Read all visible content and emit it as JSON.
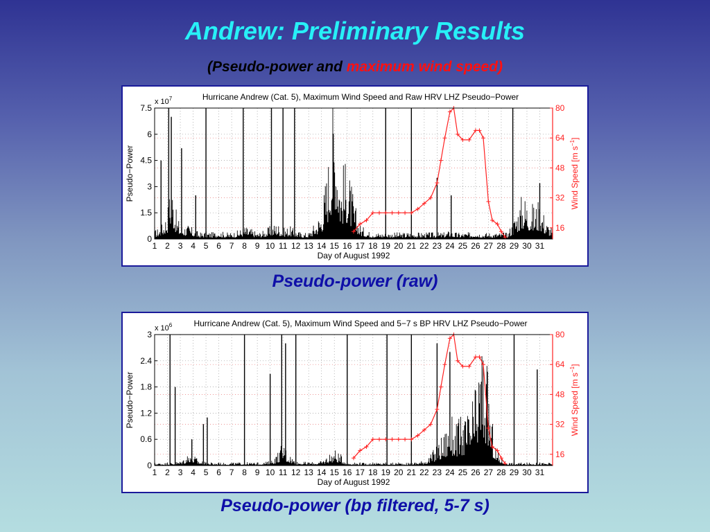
{
  "slide": {
    "title": "Andrew: Preliminary Results",
    "subtitle_part1": "(Pseudo-power and ",
    "subtitle_part2": "maximum wind speed)",
    "caption1": "Pseudo-power (raw)",
    "caption2": "Pseudo-power (bp filtered, 5-7 s)"
  },
  "colors": {
    "title": "#27f0f7",
    "caption": "#0f0fa8",
    "wind": "#ff2020",
    "power": "#000000"
  },
  "chart_data": [
    {
      "type": "area",
      "title": "Hurricane Andrew (Cat. 5), Maximum Wind Speed and Raw HRV LHZ Pseudo−Power",
      "xlabel": "Day of August 1992",
      "ylabel": "Pseudo−Power",
      "y_multiplier": "x 10",
      "y_exponent": "7",
      "y2label": "Wind Speed [m s",
      "y2label_exp": "−1",
      "y2label_close": "]",
      "xlim": [
        1,
        32
      ],
      "ylim": [
        0,
        7.5
      ],
      "y2lim": [
        10,
        80
      ],
      "xticks": [
        1,
        2,
        3,
        4,
        5,
        6,
        7,
        8,
        9,
        10,
        11,
        12,
        13,
        14,
        15,
        16,
        17,
        18,
        19,
        20,
        21,
        22,
        23,
        24,
        25,
        26,
        27,
        28,
        29,
        30,
        31
      ],
      "yticks": [
        0,
        1.5,
        3,
        4.5,
        6,
        7.5
      ],
      "ytick_labels": [
        "0",
        "1.5",
        "3",
        "4.5",
        "6",
        "7.5"
      ],
      "y2ticks": [
        16,
        32,
        48,
        64,
        80
      ],
      "grid": true,
      "series": [
        {
          "kind": "pseudo_power_envelope",
          "x": [
            1,
            1.5,
            2,
            2.3,
            2.5,
            2.7,
            3,
            3.5,
            4,
            4.5,
            5,
            5.5,
            6,
            6.5,
            7,
            7.5,
            8,
            8.5,
            9,
            9.5,
            10,
            10.5,
            11,
            11.5,
            12,
            12.5,
            13,
            13.5,
            14,
            14.5,
            14.8,
            15,
            15.2,
            15.5,
            15.7,
            16,
            16.3,
            16.6,
            17,
            17.5,
            18,
            18.5,
            19,
            19.5,
            20,
            20.5,
            21,
            21.5,
            22,
            22.5,
            23,
            23.5,
            24,
            24.5,
            25,
            25.5,
            26,
            26.5,
            27,
            27.5,
            28,
            28.5,
            29,
            29.3,
            29.7,
            30,
            30.5,
            31,
            31.5,
            32
          ],
          "values": [
            0.4,
            0.6,
            1.4,
            3.2,
            2.2,
            1.2,
            0.7,
            0.7,
            0.5,
            0.3,
            0.35,
            0.3,
            0.4,
            0.3,
            0.3,
            0.4,
            0.6,
            0.5,
            0.3,
            0.4,
            0.6,
            0.8,
            0.5,
            0.6,
            0.4,
            0.3,
            0.3,
            0.8,
            1.4,
            3.8,
            6.0,
            7.2,
            6.0,
            3.0,
            3.5,
            3.6,
            2.6,
            1.6,
            0.7,
            0.4,
            0.3,
            0.3,
            0.3,
            0.3,
            0.3,
            0.3,
            0.35,
            0.3,
            0.3,
            0.3,
            0.3,
            0.3,
            0.4,
            0.3,
            0.3,
            0.3,
            0.4,
            0.3,
            0.3,
            0.3,
            0.3,
            0.3,
            1.0,
            1.6,
            2.2,
            2.0,
            1.6,
            1.9,
            0.9,
            0.5
          ]
        },
        {
          "kind": "spikes",
          "x": [
            1.5,
            2.1,
            2.3,
            3.1,
            4.2,
            5.0,
            7.9,
            10.1,
            11.0,
            11.9,
            19.0,
            21.0,
            23.0,
            24.1,
            28.9,
            31.0
          ],
          "values": [
            4.5,
            7.5,
            7.0,
            5.2,
            2.5,
            7.5,
            7.5,
            7.5,
            7.5,
            7.5,
            7.5,
            7.5,
            3.5,
            2.5,
            7.5,
            3.2
          ]
        },
        {
          "kind": "wind",
          "x": [
            16.5,
            17,
            17.5,
            18,
            18.5,
            19,
            19.5,
            20,
            20.5,
            21,
            21.5,
            22,
            22.5,
            23,
            23.3,
            23.6,
            24,
            24.3,
            24.6,
            25,
            25.5,
            26,
            26.3,
            26.6,
            27,
            27.3,
            27.7,
            28,
            28.3
          ],
          "values": [
            14,
            18,
            20,
            24,
            24,
            24,
            24,
            24,
            24,
            24,
            26,
            29,
            32,
            40,
            52,
            64,
            78,
            80,
            66,
            63,
            63,
            68,
            68,
            64,
            30,
            20,
            18,
            14,
            11
          ]
        }
      ]
    },
    {
      "type": "area",
      "title": "Hurricane Andrew (Cat. 5), Maximum Wind Speed and 5−7 s BP HRV LHZ Pseudo−Power",
      "xlabel": "Day of August 1992",
      "ylabel": "Pseudo−Power",
      "y_multiplier": "x 10",
      "y_exponent": "6",
      "y2label": "Wind Speed [m s",
      "y2label_exp": "−1",
      "y2label_close": "]",
      "xlim": [
        1,
        32
      ],
      "ylim": [
        0,
        3
      ],
      "y2lim": [
        10,
        80
      ],
      "xticks": [
        1,
        2,
        3,
        4,
        5,
        6,
        7,
        8,
        9,
        10,
        11,
        12,
        13,
        14,
        15,
        16,
        17,
        18,
        19,
        20,
        21,
        22,
        23,
        24,
        25,
        26,
        27,
        28,
        29,
        30,
        31
      ],
      "yticks": [
        0,
        0.6,
        1.2,
        1.8,
        2.4,
        3
      ],
      "ytick_labels": [
        "0",
        "0.6",
        "1.2",
        "1.8",
        "2.4",
        "3"
      ],
      "y2ticks": [
        16,
        32,
        48,
        64,
        80
      ],
      "grid": true,
      "series": [
        {
          "kind": "pseudo_power_envelope",
          "x": [
            1,
            2,
            3,
            3.5,
            3.8,
            4,
            4.5,
            5,
            6,
            7,
            8,
            9,
            10,
            10.5,
            11,
            11.3,
            11.6,
            12,
            13,
            14,
            14.5,
            15,
            15.5,
            16,
            17,
            18,
            19,
            20,
            21,
            22,
            22.5,
            23,
            23.5,
            24,
            24.5,
            25,
            25.5,
            26,
            26.2,
            26.5,
            26.7,
            27,
            27.3,
            27.6,
            28,
            28.5,
            29,
            30,
            31,
            32
          ],
          "values": [
            0.05,
            0.05,
            0.08,
            0.2,
            0.32,
            0.2,
            0.1,
            0.06,
            0.05,
            0.05,
            0.06,
            0.05,
            0.08,
            0.2,
            0.45,
            0.3,
            0.2,
            0.08,
            0.06,
            0.08,
            0.2,
            0.3,
            0.2,
            0.06,
            0.05,
            0.05,
            0.05,
            0.05,
            0.05,
            0.1,
            0.2,
            0.4,
            0.6,
            0.9,
            0.8,
            0.9,
            1.0,
            1.4,
            1.8,
            2.4,
            2.1,
            1.6,
            0.8,
            0.3,
            0.15,
            0.06,
            0.05,
            0.05,
            0.05,
            0.05
          ]
        },
        {
          "kind": "spikes",
          "x": [
            2.2,
            2.6,
            3.9,
            4.8,
            5.1,
            8.0,
            10.0,
            10.9,
            11.2,
            12.0,
            16.0,
            19.1,
            21.0,
            23.0,
            24.0,
            29.0,
            30.8
          ],
          "values": [
            3,
            1.8,
            0.6,
            0.95,
            1.1,
            3,
            2.1,
            3,
            2.8,
            3,
            3,
            3,
            3,
            2.8,
            2.6,
            3,
            2.2
          ]
        },
        {
          "kind": "wind",
          "x": [
            16.5,
            17,
            17.5,
            18,
            18.5,
            19,
            19.5,
            20,
            20.5,
            21,
            21.5,
            22,
            22.5,
            23,
            23.3,
            23.6,
            24,
            24.3,
            24.6,
            25,
            25.5,
            26,
            26.3,
            26.6,
            27,
            27.3,
            27.7,
            28,
            28.3
          ],
          "values": [
            14,
            18,
            20,
            24,
            24,
            24,
            24,
            24,
            24,
            24,
            26,
            29,
            32,
            40,
            52,
            64,
            78,
            80,
            66,
            63,
            63,
            68,
            68,
            64,
            30,
            20,
            18,
            14,
            11
          ]
        }
      ]
    }
  ]
}
